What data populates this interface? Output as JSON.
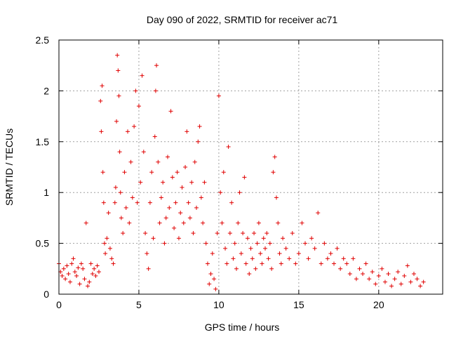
{
  "chart_data": {
    "type": "scatter",
    "title": "Day 090 of 2022, SRMTID for receiver ac71",
    "xlabel": "GPS time / hours",
    "ylabel": "SRMTID / TECUs",
    "xlim": [
      0,
      24
    ],
    "ylim": [
      0,
      2.5
    ],
    "xticks": [
      0,
      5,
      10,
      15,
      20
    ],
    "xtick_labels": [
      "0",
      "5",
      "10",
      "15",
      "20"
    ],
    "yticks": [
      0,
      0.5,
      1,
      1.5,
      2,
      2.5
    ],
    "ytick_labels": [
      "0",
      "0.5",
      "1",
      "1.5",
      "2",
      "2.5"
    ],
    "grid": true,
    "marker": "+",
    "color": "#e00000",
    "series": [
      {
        "name": "SRMTID",
        "points": [
          [
            0.0,
            0.3
          ],
          [
            0.1,
            0.22
          ],
          [
            0.2,
            0.18
          ],
          [
            0.3,
            0.25
          ],
          [
            0.4,
            0.15
          ],
          [
            0.5,
            0.28
          ],
          [
            0.6,
            0.2
          ],
          [
            0.7,
            0.12
          ],
          [
            0.8,
            0.3
          ],
          [
            0.9,
            0.35
          ],
          [
            1.0,
            0.22
          ],
          [
            1.1,
            0.18
          ],
          [
            1.2,
            0.26
          ],
          [
            1.3,
            0.1
          ],
          [
            1.4,
            0.3
          ],
          [
            1.5,
            0.25
          ],
          [
            1.6,
            0.15
          ],
          [
            1.7,
            0.7
          ],
          [
            1.8,
            0.08
          ],
          [
            1.9,
            0.12
          ],
          [
            2.0,
            0.3
          ],
          [
            2.1,
            0.2
          ],
          [
            2.2,
            0.25
          ],
          [
            2.3,
            0.18
          ],
          [
            2.4,
            0.28
          ],
          [
            2.5,
            0.22
          ],
          [
            2.6,
            1.9
          ],
          [
            2.65,
            1.6
          ],
          [
            2.7,
            2.05
          ],
          [
            2.75,
            1.2
          ],
          [
            2.8,
            0.9
          ],
          [
            2.85,
            0.5
          ],
          [
            2.9,
            0.4
          ],
          [
            3.0,
            0.55
          ],
          [
            3.1,
            0.8
          ],
          [
            3.2,
            0.45
          ],
          [
            3.3,
            0.35
          ],
          [
            3.4,
            0.3
          ],
          [
            3.5,
            0.9
          ],
          [
            3.55,
            1.05
          ],
          [
            3.6,
            1.7
          ],
          [
            3.65,
            2.35
          ],
          [
            3.7,
            2.2
          ],
          [
            3.75,
            1.95
          ],
          [
            3.8,
            1.4
          ],
          [
            3.85,
            1.0
          ],
          [
            3.9,
            0.75
          ],
          [
            4.0,
            0.6
          ],
          [
            4.1,
            1.2
          ],
          [
            4.2,
            0.85
          ],
          [
            4.3,
            1.6
          ],
          [
            4.4,
            0.7
          ],
          [
            4.5,
            1.3
          ],
          [
            4.6,
            0.95
          ],
          [
            4.7,
            1.65
          ],
          [
            4.8,
            2.0
          ],
          [
            4.9,
            0.9
          ],
          [
            5.0,
            1.85
          ],
          [
            5.1,
            1.1
          ],
          [
            5.2,
            2.15
          ],
          [
            5.3,
            1.4
          ],
          [
            5.4,
            0.6
          ],
          [
            5.5,
            0.4
          ],
          [
            5.6,
            0.25
          ],
          [
            5.7,
            0.9
          ],
          [
            5.8,
            1.2
          ],
          [
            5.9,
            0.55
          ],
          [
            6.0,
            1.55
          ],
          [
            6.05,
            2.0
          ],
          [
            6.1,
            2.25
          ],
          [
            6.2,
            1.3
          ],
          [
            6.3,
            0.7
          ],
          [
            6.4,
            0.95
          ],
          [
            6.5,
            1.1
          ],
          [
            6.6,
            0.5
          ],
          [
            6.7,
            0.75
          ],
          [
            6.8,
            1.35
          ],
          [
            6.9,
            0.85
          ],
          [
            7.0,
            1.8
          ],
          [
            7.1,
            1.15
          ],
          [
            7.2,
            0.65
          ],
          [
            7.3,
            0.9
          ],
          [
            7.4,
            1.2
          ],
          [
            7.5,
            0.55
          ],
          [
            7.6,
            0.8
          ],
          [
            7.7,
            1.05
          ],
          [
            7.8,
            0.7
          ],
          [
            7.9,
            1.25
          ],
          [
            8.0,
            1.6
          ],
          [
            8.1,
            0.9
          ],
          [
            8.2,
            0.75
          ],
          [
            8.3,
            1.1
          ],
          [
            8.4,
            0.6
          ],
          [
            8.5,
            1.3
          ],
          [
            8.6,
            0.85
          ],
          [
            8.7,
            1.5
          ],
          [
            8.8,
            1.65
          ],
          [
            8.9,
            0.95
          ],
          [
            9.0,
            0.7
          ],
          [
            9.1,
            1.1
          ],
          [
            9.2,
            0.5
          ],
          [
            9.3,
            0.3
          ],
          [
            9.4,
            0.1
          ],
          [
            9.5,
            0.2
          ],
          [
            9.6,
            0.4
          ],
          [
            9.7,
            0.15
          ],
          [
            9.8,
            0.05
          ],
          [
            9.9,
            0.6
          ],
          [
            10.0,
            1.95
          ],
          [
            10.1,
            1.0
          ],
          [
            10.2,
            0.7
          ],
          [
            10.3,
            1.2
          ],
          [
            10.4,
            0.45
          ],
          [
            10.5,
            0.3
          ],
          [
            10.6,
            1.45
          ],
          [
            10.7,
            0.6
          ],
          [
            10.8,
            0.9
          ],
          [
            10.9,
            0.35
          ],
          [
            11.0,
            0.5
          ],
          [
            11.1,
            0.25
          ],
          [
            11.2,
            0.7
          ],
          [
            11.3,
            1.0
          ],
          [
            11.4,
            0.4
          ],
          [
            11.5,
            0.6
          ],
          [
            11.6,
            1.15
          ],
          [
            11.7,
            0.3
          ],
          [
            11.8,
            0.55
          ],
          [
            11.9,
            0.2
          ],
          [
            12.0,
            0.45
          ],
          [
            12.1,
            0.35
          ],
          [
            12.2,
            0.6
          ],
          [
            12.3,
            0.25
          ],
          [
            12.4,
            0.5
          ],
          [
            12.5,
            0.7
          ],
          [
            12.6,
            0.4
          ],
          [
            12.7,
            0.3
          ],
          [
            12.8,
            0.55
          ],
          [
            12.9,
            0.45
          ],
          [
            13.0,
            0.6
          ],
          [
            13.1,
            0.35
          ],
          [
            13.2,
            0.5
          ],
          [
            13.3,
            0.25
          ],
          [
            13.4,
            1.2
          ],
          [
            13.5,
            1.35
          ],
          [
            13.6,
            0.95
          ],
          [
            13.7,
            0.7
          ],
          [
            13.8,
            0.4
          ],
          [
            13.9,
            0.3
          ],
          [
            14.0,
            0.55
          ],
          [
            14.2,
            0.45
          ],
          [
            14.4,
            0.35
          ],
          [
            14.6,
            0.6
          ],
          [
            14.8,
            0.3
          ],
          [
            15.0,
            0.4
          ],
          [
            15.2,
            0.7
          ],
          [
            15.4,
            0.5
          ],
          [
            15.6,
            0.35
          ],
          [
            15.8,
            0.55
          ],
          [
            16.0,
            0.45
          ],
          [
            16.2,
            0.8
          ],
          [
            16.4,
            0.3
          ],
          [
            16.6,
            0.5
          ],
          [
            16.8,
            0.35
          ],
          [
            17.0,
            0.4
          ],
          [
            17.2,
            0.3
          ],
          [
            17.4,
            0.45
          ],
          [
            17.6,
            0.25
          ],
          [
            17.8,
            0.35
          ],
          [
            18.0,
            0.3
          ],
          [
            18.2,
            0.2
          ],
          [
            18.4,
            0.35
          ],
          [
            18.6,
            0.15
          ],
          [
            18.8,
            0.25
          ],
          [
            19.0,
            0.2
          ],
          [
            19.2,
            0.3
          ],
          [
            19.4,
            0.15
          ],
          [
            19.6,
            0.22
          ],
          [
            19.8,
            0.1
          ],
          [
            20.0,
            0.18
          ],
          [
            20.2,
            0.25
          ],
          [
            20.4,
            0.12
          ],
          [
            20.6,
            0.2
          ],
          [
            20.8,
            0.08
          ],
          [
            21.0,
            0.15
          ],
          [
            21.2,
            0.22
          ],
          [
            21.4,
            0.1
          ],
          [
            21.6,
            0.18
          ],
          [
            21.8,
            0.28
          ],
          [
            22.0,
            0.12
          ],
          [
            22.2,
            0.2
          ],
          [
            22.4,
            0.15
          ],
          [
            22.6,
            0.08
          ],
          [
            22.8,
            0.12
          ]
        ]
      }
    ]
  }
}
